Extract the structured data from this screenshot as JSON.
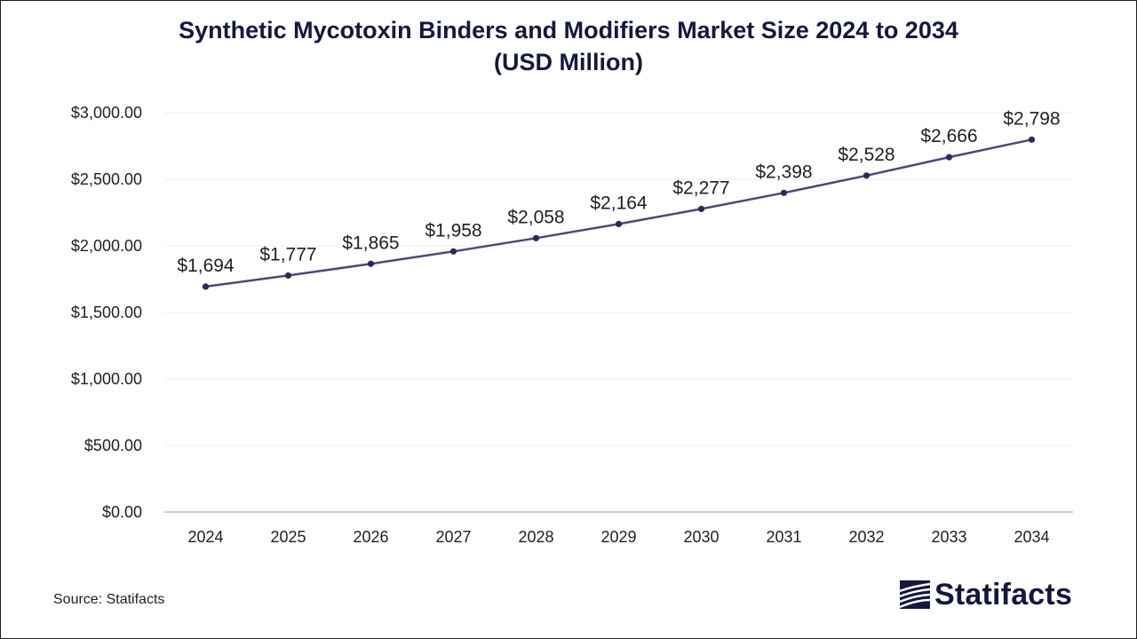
{
  "title_line1": "Synthetic Mycotoxin Binders and Modifiers Market Size 2024 to 2034",
  "title_line2": "(USD Million)",
  "source": "Source: Statifacts",
  "logo_text": "Statifacts",
  "logo_icon": "statifacts-logo-icon",
  "colors": {
    "line": "#4a4a78",
    "marker": "#2a2a5a",
    "title": "#14183e",
    "grid": "#ececec",
    "axis": "#bfbfbf"
  },
  "chart_data": {
    "type": "line",
    "title": "Synthetic Mycotoxin Binders and Modifiers Market Size 2024 to 2034 (USD Million)",
    "categories": [
      "2024",
      "2025",
      "2026",
      "2027",
      "2028",
      "2029",
      "2030",
      "2031",
      "2032",
      "2033",
      "2034"
    ],
    "series": [
      {
        "values": [
          1694,
          1777,
          1865,
          1958,
          2058,
          2164,
          2277,
          2398,
          2528,
          2666,
          2798
        ],
        "labels": [
          "$1,694",
          "$1,777",
          "$1,865",
          "$1,958",
          "$2,058",
          "$2,164",
          "$2,277",
          "$2,398",
          "$2,528",
          "$2,666",
          "$2,798"
        ]
      }
    ],
    "ylim": [
      0,
      3000
    ],
    "yticks": [
      0,
      500,
      1000,
      1500,
      2000,
      2500,
      3000
    ],
    "ytick_labels": [
      "$0.00",
      "$500.00",
      "$1,000.00",
      "$1,500.00",
      "$2,000.00",
      "$2,500.00",
      "$3,000.00"
    ],
    "grid": true,
    "legend": "none"
  }
}
